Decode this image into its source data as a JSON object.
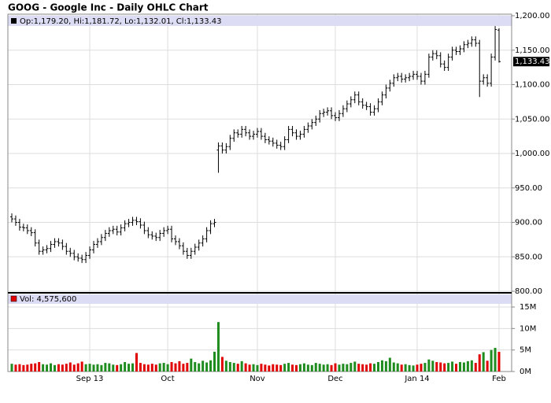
{
  "chart_data": {
    "type": "ohlc",
    "title": "GOOG - Google Inc - Daily OHLC Chart",
    "legend_text": "Op:1,179.20, Hi:1,181.72, Lo:1,132.01, Cl:1,133.43",
    "last_label": "1,133.43",
    "grid": true,
    "bar_color": "#000000",
    "up_color": "#1e8c1e",
    "down_color": "#e00000",
    "categories": [
      null,
      null,
      null,
      null,
      null,
      null,
      null,
      null,
      null,
      null,
      null,
      null,
      null,
      null,
      null,
      null,
      null,
      null,
      null,
      null,
      "Sep 13",
      null,
      null,
      null,
      null,
      null,
      null,
      null,
      null,
      null,
      null,
      null,
      null,
      null,
      null,
      null,
      null,
      null,
      null,
      null,
      "Oct",
      null,
      null,
      null,
      null,
      null,
      null,
      null,
      null,
      null,
      null,
      null,
      null,
      null,
      null,
      null,
      null,
      null,
      null,
      null,
      null,
      null,
      null,
      "Nov",
      null,
      null,
      null,
      null,
      null,
      null,
      null,
      null,
      null,
      null,
      null,
      null,
      null,
      null,
      null,
      null,
      null,
      null,
      null,
      "Dec",
      null,
      null,
      null,
      null,
      null,
      null,
      null,
      null,
      null,
      null,
      null,
      null,
      null,
      null,
      null,
      null,
      null,
      null,
      null,
      null,
      "Jan 14",
      null,
      null,
      null,
      null,
      null,
      null,
      null,
      null,
      null,
      null,
      null,
      null,
      null,
      null,
      null,
      null,
      null,
      null,
      null,
      null,
      "Feb"
    ],
    "open": [
      908,
      905,
      900,
      893,
      892,
      888,
      885,
      870,
      858,
      860,
      862,
      868,
      872,
      870,
      865,
      858,
      855,
      850,
      848,
      846,
      852,
      860,
      868,
      872,
      878,
      884,
      888,
      890,
      886,
      892,
      898,
      900,
      903,
      901,
      896,
      888,
      882,
      880,
      878,
      884,
      888,
      890,
      876,
      872,
      866,
      858,
      852,
      858,
      864,
      870,
      876,
      888,
      898,
      1005,
      1011,
      1005,
      1010,
      1022,
      1030,
      1028,
      1035,
      1030,
      1025,
      1028,
      1032,
      1025,
      1020,
      1018,
      1015,
      1012,
      1010,
      1020,
      1035,
      1030,
      1025,
      1028,
      1035,
      1040,
      1045,
      1050,
      1058,
      1060,
      1062,
      1055,
      1052,
      1058,
      1065,
      1072,
      1078,
      1085,
      1075,
      1070,
      1068,
      1060,
      1065,
      1075,
      1085,
      1095,
      1102,
      1110,
      1112,
      1108,
      1110,
      1112,
      1115,
      1112,
      1105,
      1115,
      1140,
      1145,
      1142,
      1130,
      1125,
      1140,
      1150,
      1148,
      1152,
      1158,
      1160,
      1165,
      1160,
      1105,
      1110,
      1102,
      1140,
      1179.2
    ],
    "high": [
      913,
      910,
      905,
      898,
      897,
      893,
      890,
      875,
      865,
      867,
      873,
      877,
      877,
      875,
      870,
      863,
      860,
      855,
      853,
      857,
      865,
      873,
      877,
      883,
      889,
      893,
      895,
      895,
      897,
      903,
      905,
      908,
      908,
      906,
      901,
      893,
      887,
      885,
      889,
      893,
      895,
      895,
      881,
      877,
      871,
      863,
      863,
      869,
      875,
      881,
      893,
      903,
      905,
      1016,
      1016,
      1015,
      1027,
      1035,
      1035,
      1040,
      1040,
      1035,
      1033,
      1037,
      1037,
      1030,
      1025,
      1023,
      1020,
      1017,
      1025,
      1040,
      1040,
      1035,
      1033,
      1040,
      1045,
      1050,
      1055,
      1063,
      1065,
      1067,
      1067,
      1060,
      1063,
      1070,
      1077,
      1083,
      1090,
      1090,
      1080,
      1075,
      1073,
      1070,
      1080,
      1090,
      1100,
      1107,
      1115,
      1117,
      1117,
      1115,
      1117,
      1120,
      1120,
      1117,
      1120,
      1145,
      1150,
      1150,
      1147,
      1135,
      1145,
      1155,
      1155,
      1157,
      1163,
      1165,
      1170,
      1170,
      1165,
      1115,
      1115,
      1145,
      1185,
      1181.72
    ],
    "low": [
      900,
      895,
      888,
      887,
      883,
      880,
      865,
      853,
      853,
      855,
      857,
      863,
      865,
      860,
      853,
      850,
      845,
      843,
      841,
      841,
      847,
      855,
      863,
      867,
      873,
      879,
      883,
      881,
      881,
      887,
      893,
      895,
      896,
      891,
      883,
      877,
      875,
      873,
      873,
      879,
      883,
      871,
      867,
      861,
      853,
      847,
      847,
      853,
      859,
      865,
      871,
      883,
      893,
      972,
      1000,
      1000,
      1005,
      1017,
      1023,
      1023,
      1025,
      1020,
      1020,
      1023,
      1020,
      1015,
      1013,
      1010,
      1007,
      1005,
      1005,
      1015,
      1025,
      1020,
      1020,
      1023,
      1030,
      1035,
      1040,
      1045,
      1053,
      1055,
      1050,
      1047,
      1047,
      1053,
      1060,
      1067,
      1073,
      1070,
      1065,
      1063,
      1055,
      1055,
      1060,
      1070,
      1080,
      1090,
      1097,
      1105,
      1103,
      1103,
      1105,
      1107,
      1107,
      1100,
      1100,
      1110,
      1135,
      1137,
      1125,
      1120,
      1120,
      1135,
      1143,
      1143,
      1147,
      1153,
      1155,
      1155,
      1082,
      1100,
      1097,
      1097,
      1135,
      1132.01
    ],
    "close": [
      905,
      900,
      893,
      892,
      888,
      885,
      870,
      858,
      860,
      862,
      868,
      872,
      870,
      865,
      858,
      855,
      850,
      848,
      846,
      852,
      860,
      868,
      872,
      878,
      884,
      888,
      890,
      886,
      892,
      898,
      900,
      903,
      901,
      896,
      888,
      882,
      880,
      878,
      884,
      888,
      890,
      876,
      872,
      866,
      858,
      852,
      858,
      864,
      870,
      876,
      888,
      898,
      900,
      1011,
      1005,
      1010,
      1022,
      1030,
      1028,
      1035,
      1030,
      1025,
      1028,
      1032,
      1025,
      1020,
      1018,
      1015,
      1012,
      1010,
      1020,
      1035,
      1030,
      1025,
      1028,
      1035,
      1040,
      1045,
      1050,
      1058,
      1060,
      1062,
      1055,
      1052,
      1058,
      1065,
      1072,
      1078,
      1085,
      1075,
      1070,
      1068,
      1060,
      1065,
      1075,
      1085,
      1095,
      1102,
      1110,
      1112,
      1108,
      1110,
      1112,
      1115,
      1112,
      1105,
      1115,
      1140,
      1145,
      1142,
      1130,
      1125,
      1140,
      1150,
      1148,
      1152,
      1158,
      1160,
      1165,
      1160,
      1105,
      1110,
      1102,
      1140,
      1180,
      1133.43
    ],
    "ylim": [
      800,
      1200
    ],
    "yticks": [
      {
        "value": 800,
        "label": "800.00"
      },
      {
        "value": 850,
        "label": "850.00"
      },
      {
        "value": 900,
        "label": "900.00"
      },
      {
        "value": 950,
        "label": "950.00"
      },
      {
        "value": 1000,
        "label": "1,000.00"
      },
      {
        "value": 1050,
        "label": "1,050.00"
      },
      {
        "value": 1100,
        "label": "1,100.00"
      },
      {
        "value": 1150,
        "label": "1,150.00"
      },
      {
        "value": 1200,
        "label": "1,200.00"
      }
    ],
    "volume": {
      "legend_text": "Vol: 4,575,600",
      "ylim": [
        0,
        18300000
      ],
      "yticks": [
        {
          "value": 0,
          "label": "0M"
        },
        {
          "value": 5000000,
          "label": "5M"
        },
        {
          "value": 10000000,
          "label": "10M"
        },
        {
          "value": 15000000,
          "label": "15M"
        }
      ],
      "values": [
        1800000,
        1600000,
        1700000,
        1500000,
        1600000,
        1800000,
        1900000,
        2200000,
        1700000,
        1600000,
        1900000,
        1500000,
        1700000,
        1600000,
        1800000,
        2100000,
        1600000,
        1900000,
        2300000,
        1700000,
        1800000,
        1600000,
        1700000,
        1500000,
        2000000,
        1900000,
        1600000,
        1500000,
        1700000,
        2200000,
        1800000,
        1900000,
        4300000,
        2000000,
        1700000,
        1600000,
        1800000,
        1600000,
        1900000,
        2000000,
        1700000,
        2200000,
        1900000,
        2400000,
        1800000,
        2000000,
        3000000,
        2200000,
        1900000,
        2500000,
        2100000,
        2600000,
        4600000,
        11500000,
        3400000,
        2500000,
        2200000,
        2000000,
        1800000,
        2400000,
        1900000,
        1600000,
        1700000,
        1500000,
        1800000,
        1600000,
        1400000,
        1700000,
        1600000,
        1500000,
        1800000,
        2000000,
        1600000,
        1500000,
        1700000,
        1900000,
        1600000,
        1500000,
        2000000,
        1800000,
        1600000,
        1700000,
        1500000,
        1900000,
        1600000,
        1800000,
        1700000,
        2000000,
        2300000,
        1800000,
        1700000,
        1600000,
        1900000,
        1800000,
        2200000,
        2600000,
        2400000,
        3200000,
        2100000,
        1900000,
        1600000,
        1700000,
        1500000,
        1400000,
        1600000,
        1800000,
        2000000,
        2800000,
        2500000,
        2200000,
        2100000,
        1900000,
        2000000,
        2300000,
        1800000,
        2200000,
        2100000,
        2400000,
        2600000,
        2000000,
        4000000,
        4500000,
        2500000,
        5000000,
        5500000,
        4575600
      ]
    }
  }
}
